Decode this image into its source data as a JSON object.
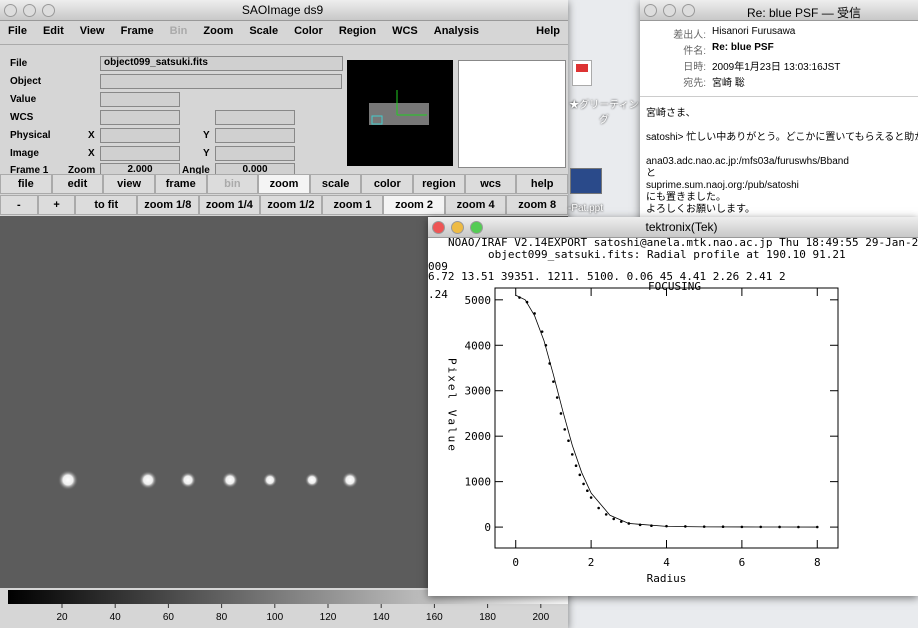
{
  "ds9": {
    "window_title": "SAOImage ds9",
    "menu": [
      "File",
      "Edit",
      "View",
      "Frame",
      "Bin",
      "Zoom",
      "Scale",
      "Color",
      "Region",
      "WCS",
      "Analysis",
      "Help"
    ],
    "info": {
      "file_label": "File",
      "file_value": "object099_satsuki.fits",
      "object_label": "Object",
      "value_label": "Value",
      "wcs_label": "WCS",
      "physical_label": "Physical",
      "image_label": "Image",
      "x_label": "X",
      "y_label": "Y",
      "frame_label": "Frame 1",
      "zoom_label": "Zoom",
      "zoom_value": "2.000",
      "angle_label": "Angle",
      "angle_value": "0.000"
    },
    "buttons": [
      "file",
      "edit",
      "view",
      "frame",
      "bin",
      "zoom",
      "scale",
      "color",
      "region",
      "wcs",
      "help"
    ],
    "zoom_buttons": [
      "-",
      "+",
      "to fit",
      "zoom 1/8",
      "zoom 1/4",
      "zoom 1/2",
      "zoom 1",
      "zoom 2",
      "zoom 4",
      "zoom 8"
    ],
    "colorbar_ticks": [
      20,
      40,
      60,
      80,
      100,
      120,
      140,
      160,
      180,
      200
    ]
  },
  "mail": {
    "window_title": "Re: blue PSF — 受信",
    "headers": [
      [
        "差出人:",
        "Hisanori Furusawa"
      ],
      [
        "件名:",
        "Re: blue PSF"
      ],
      [
        "日時:",
        "2009年1月23日 13:03:16JST"
      ],
      [
        "宛先:",
        "宮崎 聡"
      ]
    ],
    "body": [
      "宮崎さま、",
      "satoshi> 忙しい中ありがとう。どこかに置いてもらえると助か",
      "ana03.adc.nao.ac.jp:/mfs03a/furuswhs/Bband",
      "と",
      "suprime.sum.naoj.org:/pub/satoshi",
      "にも置きました。",
      "よろしくお願いします。"
    ]
  },
  "desktop": {
    "icon1": "★グリーティング",
    "icon2": "-Pat.ppt"
  },
  "tektronix": {
    "window_title": "tektronix(Tek)",
    "header": [
      "NOAO/IRAF V2.14EXPORT satoshi@anela.mtk.nao.ac.jp Thu 18:49:55 29-Jan-2",
      "object099_satsuki.fits: Radial profile at 190.10 91.21",
      "009",
      "6.72  13.51  39351.  1211.  5100.  0.06  45  4.41  2.26    2.41  2",
      "FOCUSING",
      ".24"
    ],
    "plot": {
      "type": "scatter",
      "xlabel": "Radius",
      "ylabel": "Pixel Value",
      "xlim": [
        -0.55,
        8.55
      ],
      "ylim": [
        -460,
        5260
      ],
      "xticks": [
        0,
        2,
        4,
        6,
        8
      ],
      "yticks": [
        0,
        1000,
        2000,
        3000,
        4000,
        5000
      ],
      "points": {
        "x": [
          0.1,
          0.3,
          0.5,
          0.7,
          0.8,
          0.9,
          1.0,
          1.1,
          1.2,
          1.3,
          1.4,
          1.5,
          1.6,
          1.7,
          1.8,
          1.9,
          2.0,
          2.2,
          2.4,
          2.6,
          2.8,
          3.0,
          3.3,
          3.6,
          4.0,
          4.5,
          5.0,
          5.5,
          6.0,
          6.5,
          7.0,
          7.5,
          8.0
        ],
        "y": [
          5050,
          4950,
          4700,
          4300,
          4000,
          3600,
          3200,
          2850,
          2500,
          2150,
          1900,
          1600,
          1350,
          1150,
          950,
          800,
          650,
          420,
          280,
          180,
          120,
          80,
          50,
          30,
          20,
          15,
          10,
          8,
          5,
          5,
          3,
          2,
          2
        ]
      },
      "fit": {
        "x": [
          0,
          0.25,
          0.5,
          0.75,
          1.0,
          1.25,
          1.5,
          1.75,
          2.0,
          2.5,
          3.0,
          4.0,
          5.0,
          6.0,
          7.0,
          8.0
        ],
        "y": [
          5100,
          5000,
          4650,
          4100,
          3350,
          2550,
          1800,
          1200,
          750,
          260,
          80,
          15,
          5,
          3,
          2,
          1
        ]
      }
    }
  }
}
